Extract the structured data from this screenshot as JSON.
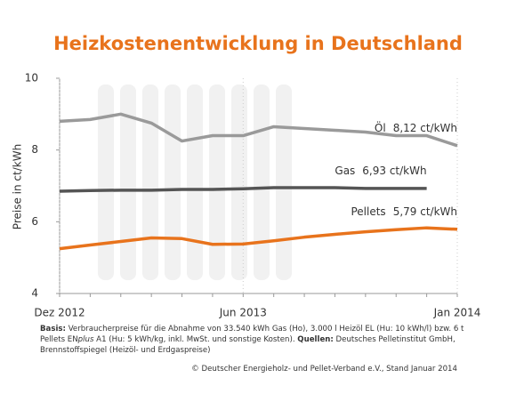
{
  "chart_data": {
    "type": "line",
    "title": "Heizkostenentwicklung in Deutschland",
    "y_label": "Preise in ct/kWh",
    "categories": [
      "Dez 2012",
      null,
      null,
      null,
      null,
      null,
      "Jun 2013",
      null,
      null,
      null,
      null,
      null,
      null,
      "Jan 2014"
    ],
    "ylim": [
      4,
      10
    ],
    "yticks": [
      4,
      6,
      8,
      10
    ],
    "grid": false,
    "series": [
      {
        "name": "Öl",
        "color": "#9a9a9a",
        "values": [
          8.8,
          8.85,
          9.0,
          8.75,
          8.25,
          8.4,
          8.4,
          8.65,
          8.6,
          8.55,
          8.5,
          8.4,
          8.4,
          8.12
        ],
        "value_labels": [
          null,
          null,
          null,
          null,
          null,
          null,
          null,
          null,
          null,
          null,
          null,
          null,
          null,
          "8,12 ct/kWh"
        ]
      },
      {
        "name": "Gas",
        "color": "#555555",
        "values": [
          6.85,
          6.87,
          6.88,
          6.88,
          6.9,
          6.9,
          6.92,
          6.95,
          6.95,
          6.95,
          6.93,
          6.93,
          6.93,
          null
        ],
        "value_labels": [
          null,
          null,
          null,
          null,
          null,
          null,
          null,
          null,
          null,
          null,
          null,
          null,
          "6,93 ct/kWh",
          null
        ]
      },
      {
        "name": "Pellets",
        "color": "#e8731c",
        "values": [
          5.25,
          5.35,
          5.45,
          5.55,
          5.53,
          5.37,
          5.38,
          5.47,
          5.57,
          5.65,
          5.72,
          5.78,
          5.83,
          5.79
        ],
        "value_labels": [
          null,
          null,
          null,
          null,
          null,
          null,
          null,
          null,
          null,
          null,
          null,
          null,
          null,
          "5,79 ct/kWh"
        ]
      }
    ],
    "footnote": [
      "Basis:",
      " Verbraucherpreise für die Abnahme von 33.540 kWh Gas (Ho), 3.000 l Heizöl EL (Hu: 10 kWh/l) bzw. 6 t Pellets EN",
      "plus",
      " A1 (Hu: 5 kWh/kg, inkl. MwSt. und sonstige Kosten). ",
      "Quellen:",
      " Deutsches Pelletinstitut GmbH, Brennstoffspiegel (Heizöl- und Erdgaspreise)"
    ],
    "source": "© Deutscher Energieholz- und Pellet-Verband e.V., Stand Januar 2014"
  }
}
